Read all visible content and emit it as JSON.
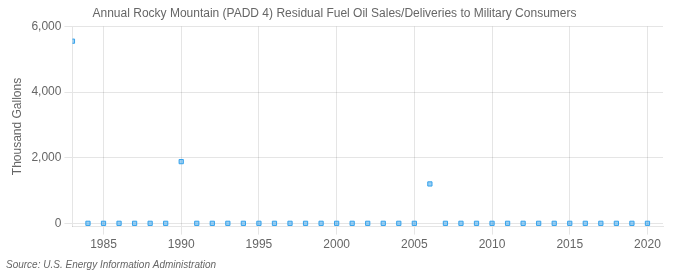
{
  "chart_data": {
    "type": "scatter",
    "title": "Annual Rocky Mountain (PADD 4) Residual Fuel Oil Sales/Deliveries to Military Consumers",
    "ylabel": "Thousand Gallons",
    "annotations": [
      "Source: U.S. Energy Information Administration"
    ],
    "x": [
      1983,
      1984,
      1985,
      1986,
      1987,
      1988,
      1989,
      1990,
      1991,
      1992,
      1993,
      1994,
      1995,
      1996,
      1997,
      1998,
      1999,
      2000,
      2001,
      2002,
      2003,
      2004,
      2005,
      2006,
      2007,
      2008,
      2009,
      2010,
      2011,
      2012,
      2013,
      2014,
      2015,
      2016,
      2017,
      2018,
      2019,
      2020
    ],
    "values": [
      5550,
      0,
      0,
      0,
      0,
      0,
      0,
      1880,
      0,
      0,
      0,
      0,
      0,
      0,
      0,
      0,
      0,
      0,
      0,
      0,
      0,
      0,
      0,
      1200,
      0,
      0,
      0,
      0,
      0,
      0,
      0,
      0,
      0,
      0,
      0,
      0,
      0,
      0
    ],
    "marker": "square",
    "xlim": [
      1983,
      2021
    ],
    "ylim": [
      -100,
      6000
    ],
    "xticks": [
      1985,
      1990,
      1995,
      2000,
      2005,
      2010,
      2015,
      2020
    ],
    "yticks": [
      0,
      {
        "value": 2000,
        "label": "2,000"
      },
      {
        "value": 4000,
        "label": "4,000"
      },
      {
        "value": 6000,
        "label": "6,000"
      }
    ],
    "grid": true
  }
}
